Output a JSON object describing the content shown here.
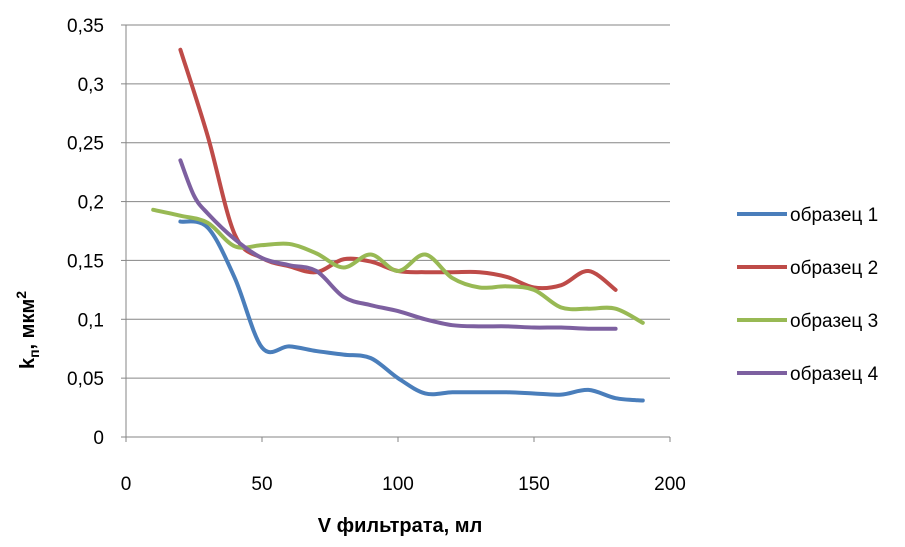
{
  "chart_data": {
    "type": "line",
    "title": "",
    "xlabel": "V фильтрата, мл",
    "ylabel_main": "k",
    "ylabel_sub": "п",
    "ylabel_rest": ", мкм",
    "ylabel_sup": "2",
    "xlim": [
      0,
      200
    ],
    "ylim": [
      0,
      0.35
    ],
    "x_ticks": [
      0,
      50,
      100,
      150,
      200
    ],
    "x_tick_labels": [
      "0",
      "50",
      "100",
      "150",
      "200"
    ],
    "y_ticks": [
      0,
      0.05,
      0.1,
      0.15,
      0.2,
      0.25,
      0.3,
      0.35
    ],
    "y_tick_labels": [
      "0",
      "0,05",
      "0,1",
      "0,15",
      "0,2",
      "0,25",
      "0,3",
      "0,35"
    ],
    "grid": "horizontal",
    "legend_position": "right",
    "series": [
      {
        "name": "образец 1",
        "color": "#4a7ebb",
        "x": [
          20,
          30,
          40,
          50,
          60,
          70,
          80,
          90,
          100,
          110,
          120,
          130,
          140,
          150,
          160,
          170,
          180,
          190
        ],
        "y": [
          0.183,
          0.178,
          0.135,
          0.076,
          0.077,
          0.073,
          0.07,
          0.067,
          0.05,
          0.037,
          0.038,
          0.038,
          0.038,
          0.037,
          0.036,
          0.04,
          0.033,
          0.031
        ]
      },
      {
        "name": "образец 2",
        "color": "#be4b48",
        "x": [
          20,
          30,
          40,
          50,
          60,
          70,
          80,
          90,
          100,
          110,
          120,
          130,
          140,
          150,
          160,
          170,
          180
        ],
        "y": [
          0.329,
          0.256,
          0.172,
          0.152,
          0.145,
          0.14,
          0.151,
          0.149,
          0.141,
          0.14,
          0.14,
          0.14,
          0.136,
          0.127,
          0.129,
          0.141,
          0.125
        ]
      },
      {
        "name": "образец 3",
        "color": "#98b954",
        "x": [
          10,
          20,
          30,
          40,
          50,
          60,
          70,
          80,
          90,
          100,
          110,
          120,
          130,
          140,
          150,
          160,
          170,
          180,
          190
        ],
        "y": [
          0.193,
          0.188,
          0.182,
          0.162,
          0.163,
          0.164,
          0.156,
          0.144,
          0.155,
          0.141,
          0.155,
          0.135,
          0.127,
          0.128,
          0.125,
          0.11,
          0.109,
          0.109,
          0.097
        ]
      },
      {
        "name": "образец 4",
        "color": "#7d60a0",
        "x": [
          20,
          25,
          30,
          40,
          50,
          60,
          70,
          80,
          90,
          100,
          110,
          120,
          130,
          140,
          150,
          160,
          170,
          180
        ],
        "y": [
          0.235,
          0.205,
          0.19,
          0.168,
          0.152,
          0.146,
          0.141,
          0.119,
          0.112,
          0.107,
          0.1,
          0.095,
          0.094,
          0.094,
          0.093,
          0.093,
          0.092,
          0.092
        ]
      }
    ]
  }
}
